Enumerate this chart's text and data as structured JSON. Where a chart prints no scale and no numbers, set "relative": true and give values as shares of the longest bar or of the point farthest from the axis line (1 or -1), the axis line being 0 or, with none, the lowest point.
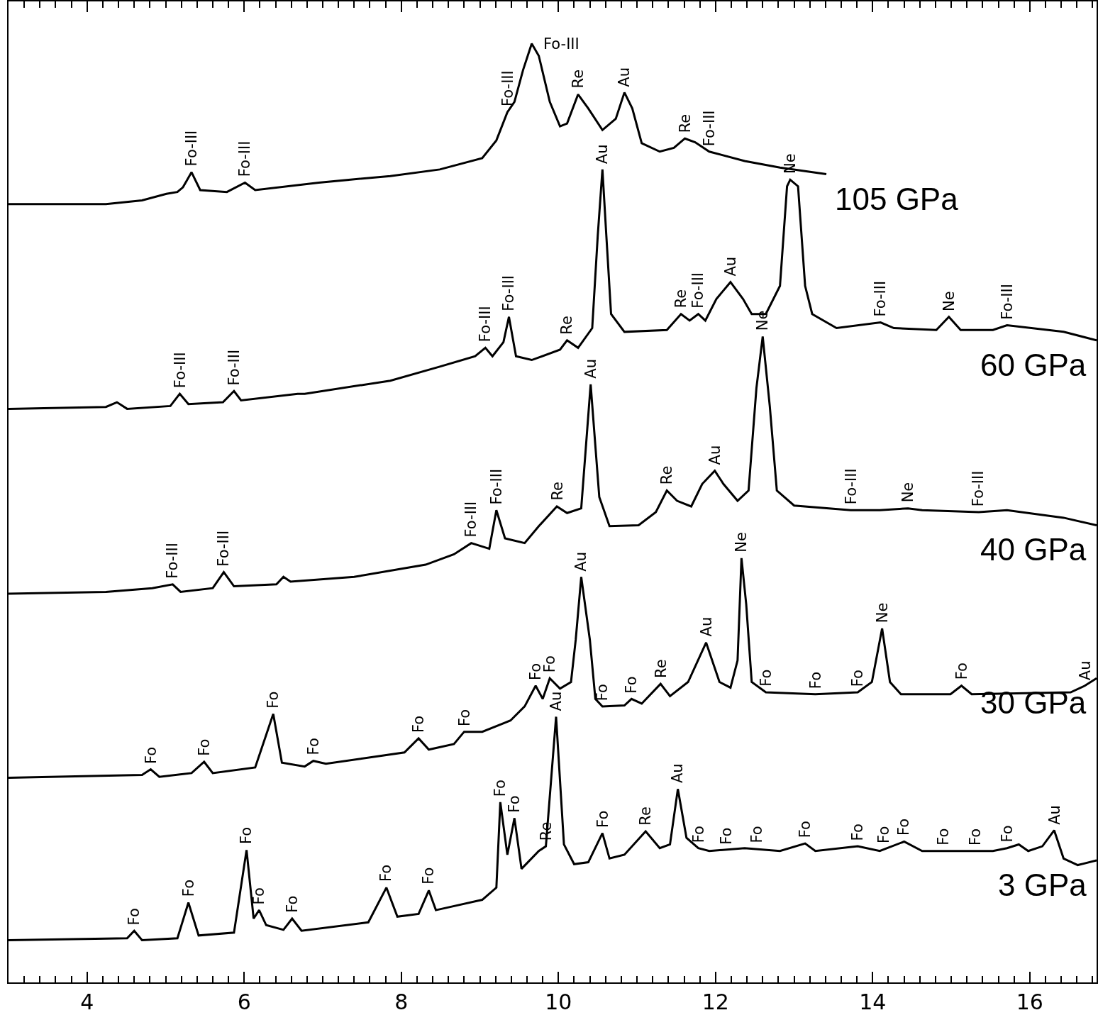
{
  "chart_data": {
    "type": "line",
    "relative": true,
    "marker": "none",
    "line_style": "solid",
    "xlim": [
      3,
      16.85
    ],
    "xticks": [
      4,
      6,
      8,
      10,
      12,
      14,
      16,
      {
        "value": 3.2,
        "label": null
      },
      {
        "value": 3.4,
        "label": null
      },
      {
        "value": 3.6,
        "label": null
      },
      {
        "value": 3.8,
        "label": null
      },
      {
        "value": 4.2,
        "label": null
      },
      {
        "value": 4.4,
        "label": null
      },
      {
        "value": 4.6,
        "label": null
      },
      {
        "value": 4.8,
        "label": null
      },
      {
        "value": 5,
        "label": null
      },
      {
        "value": 5.2,
        "label": null
      },
      {
        "value": 5.4,
        "label": null
      },
      {
        "value": 5.6,
        "label": null
      },
      {
        "value": 5.8,
        "label": null
      },
      {
        "value": 6.2,
        "label": null
      },
      {
        "value": 6.4,
        "label": null
      },
      {
        "value": 6.6,
        "label": null
      },
      {
        "value": 6.8,
        "label": null
      },
      {
        "value": 7,
        "label": null
      },
      {
        "value": 7.2,
        "label": null
      },
      {
        "value": 7.4,
        "label": null
      },
      {
        "value": 7.6,
        "label": null
      },
      {
        "value": 7.8,
        "label": null
      },
      {
        "value": 8.2,
        "label": null
      },
      {
        "value": 8.4,
        "label": null
      },
      {
        "value": 8.6,
        "label": null
      },
      {
        "value": 8.8,
        "label": null
      },
      {
        "value": 9,
        "label": null
      },
      {
        "value": 9.2,
        "label": null
      },
      {
        "value": 9.4,
        "label": null
      },
      {
        "value": 9.6,
        "label": null
      },
      {
        "value": 9.8,
        "label": null
      },
      {
        "value": 10.2,
        "label": null
      },
      {
        "value": 10.4,
        "label": null
      },
      {
        "value": 10.6,
        "label": null
      },
      {
        "value": 10.8,
        "label": null
      },
      {
        "value": 11,
        "label": null
      },
      {
        "value": 11.2,
        "label": null
      },
      {
        "value": 11.4,
        "label": null
      },
      {
        "value": 11.6,
        "label": null
      },
      {
        "value": 11.8,
        "label": null
      },
      {
        "value": 12.2,
        "label": null
      },
      {
        "value": 12.4,
        "label": null
      },
      {
        "value": 12.6,
        "label": null
      },
      {
        "value": 12.8,
        "label": null
      },
      {
        "value": 13,
        "label": null
      },
      {
        "value": 13.2,
        "label": null
      },
      {
        "value": 13.4,
        "label": null
      },
      {
        "value": 13.6,
        "label": null
      },
      {
        "value": 13.8,
        "label": null
      },
      {
        "value": 14.2,
        "label": null
      },
      {
        "value": 14.4,
        "label": null
      },
      {
        "value": 14.6,
        "label": null
      },
      {
        "value": 14.8,
        "label": null
      },
      {
        "value": 15,
        "label": null
      },
      {
        "value": 15.2,
        "label": null
      },
      {
        "value": 15.4,
        "label": null
      },
      {
        "value": 15.6,
        "label": null
      },
      {
        "value": 15.8,
        "label": null
      },
      {
        "value": 16.2,
        "label": null
      },
      {
        "value": 16.4,
        "label": null
      },
      {
        "value": 16.6,
        "label": null
      },
      {
        "value": 16.8,
        "label": null
      }
    ],
    "series": [
      {
        "name": "105 GPa",
        "color": "#000000",
        "x": [
          3,
          4.24,
          4.7,
          5.01,
          5.15,
          5.22,
          5.33,
          5.44,
          5.78,
          6.01,
          6.14,
          6.95,
          7.86,
          8.49,
          9.03,
          9.21,
          9.35,
          9.44,
          9.55,
          9.66,
          9.75,
          9.89,
          10.02,
          10.11,
          10.25,
          10.38,
          10.56,
          10.73,
          10.84,
          10.94,
          11.06,
          11.29,
          11.47,
          11.61,
          11.74,
          11.92,
          12.37,
          12.82,
          13.41
        ],
        "values": [
          0.829,
          0.829,
          0.833,
          0.84,
          0.842,
          0.847,
          0.863,
          0.844,
          0.842,
          0.852,
          0.844,
          0.852,
          0.859,
          0.866,
          0.878,
          0.897,
          0.927,
          0.938,
          0.972,
          1,
          0.987,
          0.938,
          0.912,
          0.915,
          0.946,
          0.931,
          0.908,
          0.92,
          0.948,
          0.931,
          0.894,
          0.885,
          0.889,
          0.899,
          0.895,
          0.885,
          0.875,
          0.868,
          0.861
        ]
      },
      {
        "name": "60 GPa",
        "color": "#000000",
        "x": [
          3,
          4.24,
          4.38,
          4.51,
          5.06,
          5.18,
          5.29,
          5.73,
          5.87,
          5.96,
          6.68,
          6.77,
          7.86,
          8.49,
          8.94,
          9.07,
          9.16,
          9.3,
          9.37,
          9.46,
          9.66,
          10.02,
          10.11,
          10.25,
          10.43,
          10.5,
          10.56,
          10.61,
          10.67,
          10.84,
          11.38,
          11.56,
          11.67,
          11.78,
          11.87,
          12.01,
          12.19,
          12.35,
          12.46,
          12.64,
          12.82,
          12.91,
          12.95,
          13.05,
          13.14,
          13.23,
          13.54,
          14.1,
          14.27,
          14.81,
          14.97,
          15.12,
          15.53,
          15.71,
          16.43,
          16.85
        ],
        "values": [
          0.611,
          0.613,
          0.618,
          0.611,
          0.614,
          0.627,
          0.616,
          0.618,
          0.63,
          0.62,
          0.627,
          0.627,
          0.641,
          0.656,
          0.667,
          0.676,
          0.667,
          0.682,
          0.709,
          0.667,
          0.663,
          0.674,
          0.684,
          0.676,
          0.697,
          0.795,
          0.866,
          0.795,
          0.712,
          0.693,
          0.695,
          0.712,
          0.705,
          0.712,
          0.705,
          0.728,
          0.746,
          0.728,
          0.712,
          0.712,
          0.742,
          0.848,
          0.855,
          0.848,
          0.742,
          0.712,
          0.697,
          0.703,
          0.697,
          0.695,
          0.709,
          0.695,
          0.695,
          0.7,
          0.693,
          0.684
        ]
      },
      {
        "name": "40 GPa",
        "color": "#000000",
        "x": [
          3,
          4.24,
          4.83,
          5.09,
          5.19,
          5.6,
          5.74,
          5.87,
          6.41,
          6.5,
          6.59,
          7.4,
          8.31,
          8.67,
          8.89,
          9.12,
          9.21,
          9.32,
          9.57,
          9.75,
          9.98,
          10.11,
          10.29,
          10.41,
          10.52,
          10.65,
          11.02,
          11.24,
          11.38,
          11.51,
          11.69,
          11.83,
          11.99,
          12.1,
          12.28,
          12.42,
          12.52,
          12.6,
          12.69,
          12.78,
          13,
          13.72,
          14.09,
          14.45,
          14.63,
          15.35,
          15.71,
          16.43,
          16.85
        ],
        "values": [
          0.414,
          0.416,
          0.42,
          0.424,
          0.416,
          0.42,
          0.437,
          0.422,
          0.424,
          0.432,
          0.427,
          0.432,
          0.445,
          0.456,
          0.468,
          0.462,
          0.503,
          0.473,
          0.468,
          0.486,
          0.507,
          0.5,
          0.505,
          0.637,
          0.517,
          0.486,
          0.487,
          0.501,
          0.524,
          0.513,
          0.507,
          0.531,
          0.545,
          0.531,
          0.513,
          0.524,
          0.633,
          0.688,
          0.614,
          0.524,
          0.508,
          0.503,
          0.503,
          0.505,
          0.503,
          0.501,
          0.503,
          0.495,
          0.487
        ]
      },
      {
        "name": "30 GPa",
        "color": "#000000",
        "x": [
          3,
          4.7,
          4.81,
          4.92,
          5.33,
          5.49,
          5.6,
          6.14,
          6.37,
          6.48,
          6.77,
          6.88,
          7.04,
          8.04,
          8.22,
          8.35,
          8.67,
          8.8,
          9.03,
          9.39,
          9.57,
          9.71,
          9.8,
          9.89,
          10.02,
          10.16,
          10.22,
          10.29,
          10.4,
          10.47,
          10.56,
          10.84,
          10.93,
          11.06,
          11.3,
          11.42,
          11.65,
          11.88,
          12.05,
          12.19,
          12.28,
          12.33,
          12.39,
          12.46,
          12.64,
          13.27,
          13.81,
          13.99,
          14.12,
          14.22,
          14.36,
          14.99,
          15.13,
          15.26,
          16.52,
          16.7,
          16.85
        ],
        "values": [
          0.218,
          0.221,
          0.227,
          0.219,
          0.223,
          0.235,
          0.223,
          0.229,
          0.286,
          0.234,
          0.23,
          0.236,
          0.233,
          0.245,
          0.26,
          0.248,
          0.254,
          0.267,
          0.267,
          0.279,
          0.294,
          0.316,
          0.302,
          0.324,
          0.313,
          0.32,
          0.365,
          0.432,
          0.365,
          0.302,
          0.294,
          0.295,
          0.302,
          0.297,
          0.318,
          0.305,
          0.32,
          0.362,
          0.32,
          0.314,
          0.343,
          0.452,
          0.403,
          0.32,
          0.309,
          0.307,
          0.309,
          0.32,
          0.377,
          0.32,
          0.307,
          0.307,
          0.316,
          0.307,
          0.309,
          0.316,
          0.324
        ]
      },
      {
        "name": "3 GPa",
        "color": "#000000",
        "x": [
          3,
          4.51,
          4.6,
          4.7,
          5.15,
          5.29,
          5.42,
          5.87,
          6.03,
          6.12,
          6.19,
          6.28,
          6.5,
          6.61,
          6.73,
          7.58,
          7.81,
          7.95,
          8.22,
          8.35,
          8.44,
          9.03,
          9.21,
          9.26,
          9.35,
          9.44,
          9.53,
          9.75,
          9.84,
          9.97,
          10.07,
          10.2,
          10.38,
          10.56,
          10.65,
          10.84,
          11.11,
          11.29,
          11.42,
          11.52,
          11.63,
          11.78,
          11.92,
          12.37,
          12.82,
          13.14,
          13.27,
          13.81,
          14.09,
          14.4,
          14.63,
          15.53,
          15.71,
          15.86,
          15.98,
          16.16,
          16.31,
          16.43,
          16.61,
          16.85
        ],
        "values": [
          0.045,
          0.047,
          0.055,
          0.045,
          0.047,
          0.085,
          0.05,
          0.053,
          0.141,
          0.068,
          0.077,
          0.061,
          0.056,
          0.068,
          0.055,
          0.064,
          0.101,
          0.07,
          0.073,
          0.098,
          0.077,
          0.088,
          0.101,
          0.192,
          0.136,
          0.175,
          0.121,
          0.14,
          0.145,
          0.283,
          0.147,
          0.126,
          0.128,
          0.159,
          0.132,
          0.136,
          0.161,
          0.143,
          0.147,
          0.206,
          0.154,
          0.143,
          0.14,
          0.143,
          0.14,
          0.148,
          0.14,
          0.145,
          0.14,
          0.15,
          0.14,
          0.14,
          0.143,
          0.147,
          0.14,
          0.145,
          0.162,
          0.132,
          0.125,
          0.13
        ]
      }
    ],
    "annotations": [
      {
        "text": "Fo-III",
        "x": 5.33,
        "y": 0.863
      },
      {
        "text": "Fo-III",
        "x": 6.01,
        "y": 0.852
      },
      {
        "text": "Fo-III",
        "x": 9.35,
        "y": 0.927
      },
      {
        "text": "Fo-III",
        "x": 9.66,
        "y": 1
      },
      {
        "text": "Re",
        "x": 10.25,
        "y": 0.946
      },
      {
        "text": "Au",
        "x": 10.84,
        "y": 0.948
      },
      {
        "text": "Re",
        "x": 11.61,
        "y": 0.899
      },
      {
        "text": "Fo-III",
        "x": 11.92,
        "y": 0.885
      },
      {
        "text": "Fo-III",
        "x": 5.18,
        "y": 0.627
      },
      {
        "text": "Fo-III",
        "x": 5.87,
        "y": 0.63
      },
      {
        "text": "Fo-III",
        "x": 9.07,
        "y": 0.676
      },
      {
        "text": "Fo-III",
        "x": 9.37,
        "y": 0.709
      },
      {
        "text": "Re",
        "x": 10.11,
        "y": 0.684
      },
      {
        "text": "Au",
        "x": 10.56,
        "y": 0.866
      },
      {
        "text": "Re",
        "x": 11.56,
        "y": 0.712
      },
      {
        "text": "Fo-III",
        "x": 11.78,
        "y": 0.712
      },
      {
        "text": "Au",
        "x": 12.19,
        "y": 0.746
      },
      {
        "text": "Ne",
        "x": 12.95,
        "y": 0.855
      },
      {
        "text": "Fo-III",
        "x": 14.1,
        "y": 0.703
      },
      {
        "text": "Ne",
        "x": 14.97,
        "y": 0.709
      },
      {
        "text": "Fo-III",
        "x": 15.71,
        "y": 0.7
      },
      {
        "text": "Fo-III",
        "x": 5.09,
        "y": 0.424
      },
      {
        "text": "Fo-III",
        "x": 5.74,
        "y": 0.437
      },
      {
        "text": "Fo-III",
        "x": 8.89,
        "y": 0.468
      },
      {
        "text": "Fo-III",
        "x": 9.21,
        "y": 0.503
      },
      {
        "text": "Re",
        "x": 9.98,
        "y": 0.507
      },
      {
        "text": "Au",
        "x": 10.41,
        "y": 0.637
      },
      {
        "text": "Re",
        "x": 11.38,
        "y": 0.524
      },
      {
        "text": "Au",
        "x": 11.99,
        "y": 0.545
      },
      {
        "text": "Ne",
        "x": 12.6,
        "y": 0.688
      },
      {
        "text": "Fo-III",
        "x": 13.72,
        "y": 0.503
      },
      {
        "text": "Ne",
        "x": 14.45,
        "y": 0.505
      },
      {
        "text": "Fo-III",
        "x": 15.35,
        "y": 0.501
      },
      {
        "text": "Fo",
        "x": 4.81,
        "y": 0.227
      },
      {
        "text": "Fo",
        "x": 5.49,
        "y": 0.235
      },
      {
        "text": "Fo",
        "x": 6.37,
        "y": 0.286
      },
      {
        "text": "Fo",
        "x": 6.88,
        "y": 0.236
      },
      {
        "text": "Fo",
        "x": 8.22,
        "y": 0.26
      },
      {
        "text": "Fo",
        "x": 8.8,
        "y": 0.267
      },
      {
        "text": "Fo",
        "x": 9.71,
        "y": 0.316
      },
      {
        "text": "Fo",
        "x": 9.89,
        "y": 0.324
      },
      {
        "text": "Au",
        "x": 10.29,
        "y": 0.432
      },
      {
        "text": "Fo",
        "x": 10.56,
        "y": 0.294
      },
      {
        "text": "Fo",
        "x": 10.93,
        "y": 0.302
      },
      {
        "text": "Re",
        "x": 11.3,
        "y": 0.318
      },
      {
        "text": "Au",
        "x": 11.88,
        "y": 0.362
      },
      {
        "text": "Ne",
        "x": 12.33,
        "y": 0.452
      },
      {
        "text": "Fo",
        "x": 12.64,
        "y": 0.309
      },
      {
        "text": "Fo",
        "x": 13.27,
        "y": 0.307
      },
      {
        "text": "Fo",
        "x": 13.81,
        "y": 0.309
      },
      {
        "text": "Ne",
        "x": 14.12,
        "y": 0.377
      },
      {
        "text": "Fo",
        "x": 15.13,
        "y": 0.316
      },
      {
        "text": "Au",
        "x": 16.7,
        "y": 0.316
      },
      {
        "text": "Fo",
        "x": 4.6,
        "y": 0.055
      },
      {
        "text": "Fo",
        "x": 5.29,
        "y": 0.085
      },
      {
        "text": "Fo",
        "x": 6.03,
        "y": 0.141
      },
      {
        "text": "Fo",
        "x": 6.19,
        "y": 0.077
      },
      {
        "text": "Fo",
        "x": 6.61,
        "y": 0.068
      },
      {
        "text": "Fo",
        "x": 7.81,
        "y": 0.101
      },
      {
        "text": "Fo",
        "x": 8.35,
        "y": 0.098
      },
      {
        "text": "Fo",
        "x": 9.26,
        "y": 0.192
      },
      {
        "text": "Fo",
        "x": 9.44,
        "y": 0.175
      },
      {
        "text": "Re",
        "x": 9.84,
        "y": 0.145
      },
      {
        "text": "Au",
        "x": 9.97,
        "y": 0.283
      },
      {
        "text": "Fo",
        "x": 10.56,
        "y": 0.159
      },
      {
        "text": "Re",
        "x": 11.11,
        "y": 0.161
      },
      {
        "text": "Au",
        "x": 11.52,
        "y": 0.206
      },
      {
        "text": "Fo",
        "x": 11.78,
        "y": 0.143
      },
      {
        "text": "Fo",
        "x": 12.14,
        "y": 0.141
      },
      {
        "text": "Fo",
        "x": 12.53,
        "y": 0.142
      },
      {
        "text": "Fo",
        "x": 13.14,
        "y": 0.148
      },
      {
        "text": "Fo",
        "x": 13.81,
        "y": 0.145
      },
      {
        "text": "Fo",
        "x": 14.14,
        "y": 0.142
      },
      {
        "text": "Fo",
        "x": 14.4,
        "y": 0.15
      },
      {
        "text": "Fo",
        "x": 14.9,
        "y": 0.14
      },
      {
        "text": "Fo",
        "x": 15.3,
        "y": 0.14
      },
      {
        "text": "Fo",
        "x": 15.71,
        "y": 0.143
      },
      {
        "text": "Au",
        "x": 16.31,
        "y": 0.162
      }
    ]
  }
}
